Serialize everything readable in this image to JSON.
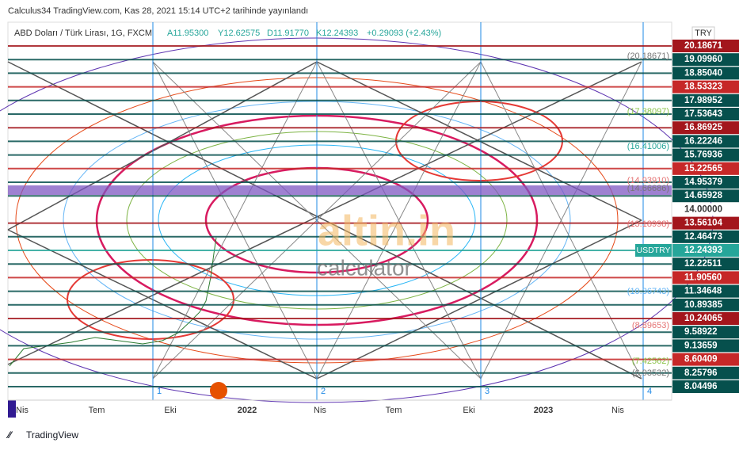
{
  "header": {
    "title": "Calculus34 TradingView.com, Kas 28, 2021 15:14 UTC+2 tarihinde yayınlandı"
  },
  "symbol": {
    "name": "ABD Doları / Türk Lirası, 1G, FXCM",
    "open": "A11.95300",
    "high": "Y12.62575",
    "low": "D11.91770",
    "close": "K12.24393",
    "change": "+0.29093 (+2.43%)"
  },
  "currency": "TRY",
  "price_axis": [
    {
      "label": "20.18671",
      "color": "#a3161c"
    },
    {
      "label": "19.09960",
      "color": "#06504d"
    },
    {
      "label": "18.85040",
      "color": "#06504d"
    },
    {
      "label": "18.53323",
      "color": "#c62828"
    },
    {
      "label": "17.98952",
      "color": "#06504d"
    },
    {
      "label": "17.53643",
      "color": "#06504d"
    },
    {
      "label": "16.86925",
      "color": "#a3161c"
    },
    {
      "label": "16.22246",
      "color": "#06504d"
    },
    {
      "label": "15.76936",
      "color": "#06504d"
    },
    {
      "label": "15.22565",
      "color": "#c62828"
    },
    {
      "label": "14.95379",
      "color": "#06504d"
    },
    {
      "label": "14.65928",
      "color": "#06504d"
    },
    {
      "label": "14.00000",
      "color": "#ffffff"
    },
    {
      "label": "13.56104",
      "color": "#a3161c"
    },
    {
      "label": "12.46473",
      "color": "#06504d"
    },
    {
      "label": "12.24393",
      "color": "#26a69a",
      "symbol": "USDTRY"
    },
    {
      "label": "12.22511",
      "color": "#06504d"
    },
    {
      "label": "11.90560",
      "color": "#c62828"
    },
    {
      "label": "11.34648",
      "color": "#06504d"
    },
    {
      "label": "10.89385",
      "color": "#06504d"
    },
    {
      "label": "10.24065",
      "color": "#a3161c"
    },
    {
      "label": "9.58922",
      "color": "#06504d"
    },
    {
      "label": "9.13659",
      "color": "#06504d"
    },
    {
      "label": "8.60409",
      "color": "#c62828"
    },
    {
      "label": "8.25796",
      "color": "#06504d"
    },
    {
      "label": "8.04496",
      "color": "#06504d"
    }
  ],
  "levels": [
    "(20.18671)",
    "(17.38097)",
    "(16.41006)",
    "(14.93910)",
    "(14.66686)",
    "(13.18998)",
    "(10.36743)",
    "(8.89653)",
    "(7.42562)",
    "(6.93532)"
  ],
  "time_axis": [
    "Nis",
    "Tem",
    "Eki",
    "2022",
    "Nis",
    "Tem",
    "Eki",
    "2023",
    "Nis"
  ],
  "markers": [
    "1",
    "2",
    "3",
    "4"
  ],
  "watermark": {
    "brand": "altin.in",
    "sub": "calculator"
  },
  "footer": "TradingView"
}
